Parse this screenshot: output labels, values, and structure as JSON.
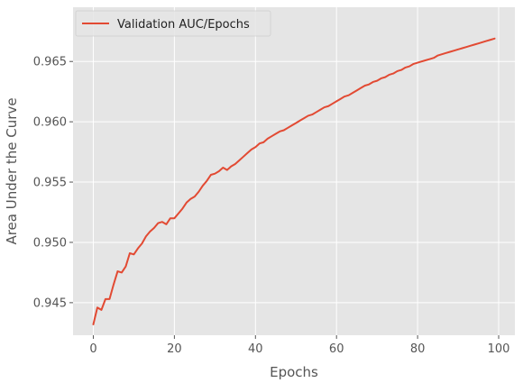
{
  "chart_data": {
    "type": "line",
    "title": "",
    "xlabel": "Epochs",
    "ylabel": "Area Under the Curve",
    "xlim": [
      -5,
      104
    ],
    "ylim": [
      0.9423,
      0.9695
    ],
    "x_ticks": [
      0,
      20,
      40,
      60,
      80,
      100
    ],
    "y_ticks": [
      0.945,
      0.95,
      0.955,
      0.96,
      0.965
    ],
    "x_tick_labels": [
      "0",
      "20",
      "40",
      "60",
      "80",
      "100"
    ],
    "y_tick_labels": [
      "0.945",
      "0.950",
      "0.955",
      "0.960",
      "0.965"
    ],
    "grid": true,
    "legend_position": "top-left",
    "colors": {
      "background": "#e5e5e5",
      "grid": "#ffffff",
      "line": "#e24a33"
    },
    "series": [
      {
        "name": "Validation AUC/Epochs",
        "x": [
          0,
          1,
          2,
          3,
          4,
          5,
          6,
          7,
          8,
          9,
          10,
          11,
          12,
          13,
          14,
          15,
          16,
          17,
          18,
          19,
          20,
          21,
          22,
          23,
          24,
          25,
          26,
          27,
          28,
          29,
          30,
          31,
          32,
          33,
          34,
          35,
          36,
          37,
          38,
          39,
          40,
          41,
          42,
          43,
          44,
          45,
          46,
          47,
          48,
          49,
          50,
          51,
          52,
          53,
          54,
          55,
          56,
          57,
          58,
          59,
          60,
          61,
          62,
          63,
          64,
          65,
          66,
          67,
          68,
          69,
          70,
          71,
          72,
          73,
          74,
          75,
          76,
          77,
          78,
          79,
          80,
          81,
          82,
          83,
          84,
          85,
          86,
          87,
          88,
          89,
          90,
          91,
          92,
          93,
          94,
          95,
          96,
          97,
          98,
          99
        ],
        "values": [
          0.9432,
          0.9446,
          0.9444,
          0.9453,
          0.9453,
          0.9465,
          0.9476,
          0.9475,
          0.948,
          0.9491,
          0.949,
          0.9495,
          0.9499,
          0.9505,
          0.9509,
          0.9512,
          0.9516,
          0.9517,
          0.9515,
          0.952,
          0.952,
          0.9524,
          0.9528,
          0.9533,
          0.9536,
          0.9538,
          0.9542,
          0.9547,
          0.9551,
          0.9556,
          0.9557,
          0.9559,
          0.9562,
          0.956,
          0.9563,
          0.9565,
          0.9568,
          0.9571,
          0.9574,
          0.9577,
          0.9579,
          0.9582,
          0.9583,
          0.9586,
          0.9588,
          0.959,
          0.9592,
          0.9593,
          0.9595,
          0.9597,
          0.9599,
          0.9601,
          0.9603,
          0.9605,
          0.9606,
          0.9608,
          0.961,
          0.9612,
          0.9613,
          0.9615,
          0.9617,
          0.9619,
          0.9621,
          0.9622,
          0.9624,
          0.9626,
          0.9628,
          0.963,
          0.9631,
          0.9633,
          0.9634,
          0.9636,
          0.9637,
          0.9639,
          0.964,
          0.9642,
          0.9643,
          0.9645,
          0.9646,
          0.9648,
          0.9649,
          0.965,
          0.9651,
          0.9652,
          0.9653,
          0.9655,
          0.9656,
          0.9657,
          0.9658,
          0.9659,
          0.966,
          0.9661,
          0.9662,
          0.9663,
          0.9664,
          0.9665,
          0.9666,
          0.9667,
          0.9668,
          0.9669
        ]
      }
    ]
  }
}
